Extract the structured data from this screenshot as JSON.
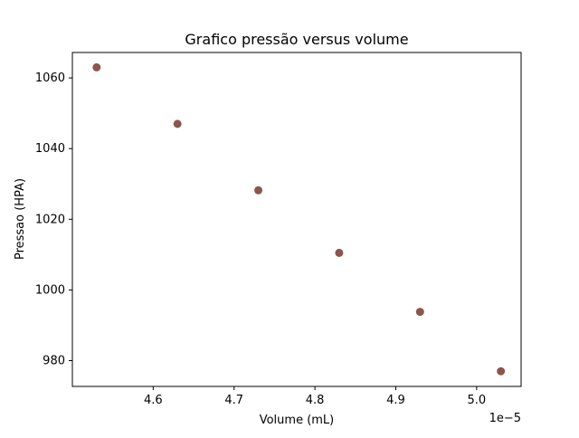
{
  "chart_data": {
    "type": "scatter",
    "title": "Grafico pressão versus volume",
    "xlabel": "Volume (mL)",
    "ylabel": "Pressao (HPA)",
    "x_offset_text": "1e−5",
    "x_scale": 1e-05,
    "xlim": [
      4.5e-05,
      5.055e-05
    ],
    "ylim": [
      972.7,
      1067.2
    ],
    "x_ticks": [
      4.6e-05,
      4.7e-05,
      4.8e-05,
      4.9e-05,
      5e-05
    ],
    "x_tick_labels": [
      "4.6",
      "4.7",
      "4.8",
      "4.9",
      "5.0"
    ],
    "y_ticks": [
      980,
      1000,
      1020,
      1040,
      1060
    ],
    "y_tick_labels": [
      "980",
      "1000",
      "1020",
      "1040",
      "1060"
    ],
    "grid": false,
    "legend": "none",
    "marker_color": "#8c564b",
    "points": [
      {
        "x": 4.53e-05,
        "y": 1063.0
      },
      {
        "x": 4.63e-05,
        "y": 1047.0
      },
      {
        "x": 4.73e-05,
        "y": 1028.2
      },
      {
        "x": 4.83e-05,
        "y": 1010.5
      },
      {
        "x": 4.93e-05,
        "y": 993.8
      },
      {
        "x": 5.03e-05,
        "y": 977.0
      }
    ]
  }
}
